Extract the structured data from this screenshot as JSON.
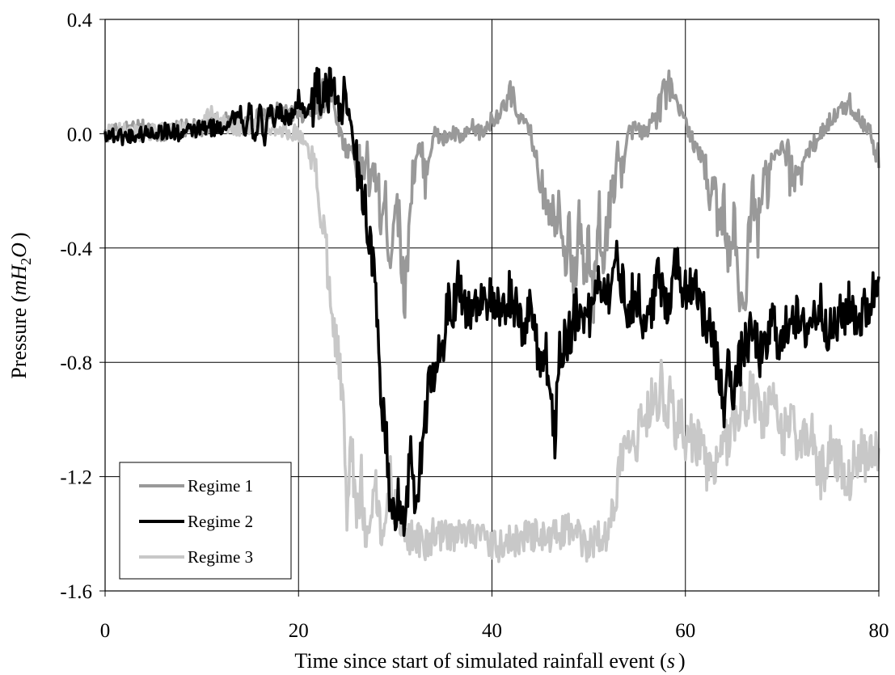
{
  "chart_data": {
    "type": "line",
    "title": "",
    "xlabel": "Time since start of simulated rainfall event (s)",
    "xlabel_parts": {
      "text": "Time since start of simulated rainfall event (",
      "unit": "s",
      "close": ")"
    },
    "ylabel": "Pressure (mH2O)",
    "ylabel_parts": {
      "text": "Pressure (",
      "unit_m": "mH",
      "unit_sub": "2",
      "unit_o": "O",
      "close": ")"
    },
    "xlim": [
      0,
      80
    ],
    "ylim": [
      -1.6,
      0.4
    ],
    "xticks": [
      0,
      20,
      40,
      60,
      80
    ],
    "xtick_labels": [
      "0",
      "20",
      "40",
      "60",
      "80"
    ],
    "yticks": [
      0.4,
      0.0,
      -0.4,
      -0.8,
      -1.2,
      -1.6
    ],
    "ytick_labels": [
      "0.4",
      "0.0",
      "-0.4",
      "-0.8",
      "-1.2",
      "-1.6"
    ],
    "grid": true,
    "legend_position": "bottom-left",
    "series": [
      {
        "name": "Regime 1",
        "color": "#999999",
        "x": [
          0,
          2,
          4,
          6,
          8,
          10,
          12,
          14,
          16,
          18,
          20,
          21,
          22,
          22.5,
          23,
          23.5,
          24,
          24.5,
          25,
          25.5,
          26,
          26.5,
          27,
          27.5,
          28,
          28.5,
          29,
          29.5,
          30,
          30.5,
          31,
          31.5,
          32,
          32.5,
          33,
          33.5,
          34,
          35,
          36,
          37,
          38,
          39,
          40,
          41,
          42,
          43,
          44,
          45,
          46,
          46.5,
          47,
          47.5,
          48,
          48.5,
          49,
          49.5,
          50,
          50.5,
          51,
          51.5,
          52,
          52.5,
          53,
          53.5,
          54,
          55,
          56,
          57,
          58,
          59,
          60,
          61,
          62,
          62.5,
          63,
          63.5,
          64,
          64.5,
          65,
          65.5,
          66,
          66.5,
          67,
          67.5,
          68,
          68.5,
          69,
          70,
          71,
          72,
          73,
          74,
          75,
          76,
          77,
          78,
          79,
          79.5,
          80
        ],
        "y": [
          0.0,
          0.01,
          0.02,
          0.0,
          0.02,
          0.02,
          0.05,
          0.03,
          0.06,
          0.08,
          0.06,
          0.07,
          0.1,
          0.15,
          0.16,
          0.12,
          0.05,
          -0.02,
          -0.06,
          -0.05,
          -0.1,
          -0.15,
          -0.08,
          -0.2,
          -0.12,
          -0.3,
          -0.25,
          -0.45,
          -0.2,
          -0.35,
          -0.6,
          -0.25,
          -0.1,
          -0.05,
          -0.15,
          -0.08,
          0.0,
          -0.02,
          0.0,
          -0.02,
          0.02,
          0.0,
          0.05,
          0.08,
          0.12,
          0.05,
          0.0,
          -0.15,
          -0.25,
          -0.3,
          -0.2,
          -0.45,
          -0.35,
          -0.55,
          -0.3,
          -0.5,
          -0.4,
          -0.6,
          -0.25,
          -0.45,
          -0.3,
          -0.2,
          -0.05,
          -0.15,
          0.0,
          0.02,
          0.0,
          0.1,
          0.15,
          0.1,
          0.05,
          -0.05,
          -0.1,
          -0.2,
          -0.15,
          -0.35,
          -0.25,
          -0.45,
          -0.3,
          -0.55,
          -0.65,
          -0.4,
          -0.2,
          -0.35,
          -0.15,
          -0.2,
          -0.1,
          -0.05,
          -0.15,
          -0.1,
          -0.05,
          0.0,
          0.05,
          0.08,
          0.1,
          0.05,
          0.02,
          -0.05,
          -0.12
        ]
      },
      {
        "name": "Regime 2",
        "color": "#000000",
        "x": [
          0,
          2,
          4,
          6,
          8,
          10,
          12,
          13,
          14,
          14.5,
          15,
          15.5,
          16,
          16.5,
          17,
          17.5,
          18,
          19,
          20,
          21,
          22,
          23,
          23.5,
          24,
          24.5,
          25,
          25.5,
          26,
          26.5,
          27,
          27.5,
          28,
          28.5,
          29,
          29.5,
          30,
          30.5,
          31,
          31.5,
          32,
          32.5,
          33,
          33.5,
          34,
          34.5,
          35,
          35.5,
          36,
          36.5,
          37,
          38,
          39,
          40,
          41,
          42,
          43,
          44,
          45,
          45.5,
          46,
          46.5,
          47,
          48,
          49,
          50,
          51,
          52,
          53,
          54,
          55,
          56,
          57,
          58,
          59,
          60,
          61,
          62,
          63,
          63.5,
          64,
          64.5,
          65,
          66,
          67,
          68,
          69,
          70,
          71,
          72,
          73,
          74,
          75,
          76,
          77,
          78,
          79,
          80
        ],
        "y": [
          0.0,
          -0.01,
          0.0,
          0.01,
          0.0,
          0.02,
          0.02,
          0.05,
          0.08,
          -0.02,
          0.1,
          -0.05,
          0.12,
          -0.05,
          0.1,
          0.05,
          0.08,
          0.05,
          0.1,
          0.08,
          0.15,
          0.12,
          0.18,
          0.15,
          0.1,
          0.12,
          0.0,
          -0.1,
          -0.15,
          -0.3,
          -0.4,
          -0.6,
          -0.9,
          -1.05,
          -1.3,
          -1.35,
          -1.25,
          -1.4,
          -1.1,
          -1.3,
          -1.2,
          -1.0,
          -0.9,
          -0.85,
          -0.75,
          -0.8,
          -0.55,
          -0.65,
          -0.45,
          -0.6,
          -0.62,
          -0.55,
          -0.6,
          -0.65,
          -0.55,
          -0.7,
          -0.6,
          -0.8,
          -0.75,
          -0.9,
          -1.05,
          -0.75,
          -0.7,
          -0.6,
          -0.65,
          -0.5,
          -0.55,
          -0.45,
          -0.6,
          -0.55,
          -0.7,
          -0.5,
          -0.6,
          -0.45,
          -0.55,
          -0.5,
          -0.65,
          -0.75,
          -0.85,
          -0.95,
          -0.8,
          -0.9,
          -0.75,
          -0.7,
          -0.8,
          -0.65,
          -0.75,
          -0.6,
          -0.7,
          -0.65,
          -0.6,
          -0.7,
          -0.65,
          -0.6,
          -0.65,
          -0.6,
          -0.5
        ]
      },
      {
        "name": "Regime 3",
        "color": "#c8c8c8",
        "x": [
          0,
          2,
          4,
          6,
          8,
          10,
          11,
          12,
          14,
          16,
          18,
          20,
          21,
          22,
          22.5,
          23,
          23.5,
          24,
          24.5,
          25,
          25.5,
          26,
          26.5,
          27,
          27.5,
          28,
          28.5,
          29,
          29.5,
          30,
          30.5,
          31,
          31.5,
          32,
          33,
          34,
          36,
          38,
          40,
          42,
          44,
          46,
          48,
          50,
          51,
          52,
          52.5,
          53,
          53.5,
          54,
          54.5,
          55,
          55.5,
          56,
          56.5,
          57,
          57.5,
          58,
          58.5,
          59,
          59.5,
          60,
          61,
          62,
          63,
          64,
          65,
          66,
          67,
          68,
          69,
          70,
          71,
          72,
          73,
          74,
          75,
          76,
          77,
          78,
          79,
          80
        ],
        "y": [
          0.0,
          0.01,
          0.0,
          0.02,
          0.01,
          0.02,
          0.08,
          0.04,
          0.02,
          0.03,
          0.02,
          0.0,
          -0.05,
          -0.2,
          -0.3,
          -0.45,
          -0.6,
          -0.75,
          -0.9,
          -1.3,
          -1.1,
          -1.35,
          -1.2,
          -1.45,
          -1.3,
          -1.25,
          -1.4,
          -1.35,
          -1.2,
          -1.3,
          -1.35,
          -1.38,
          -1.42,
          -1.4,
          -1.45,
          -1.4,
          -1.42,
          -1.38,
          -1.45,
          -1.43,
          -1.4,
          -1.42,
          -1.38,
          -1.45,
          -1.4,
          -1.42,
          -1.3,
          -1.2,
          -1.1,
          -1.05,
          -1.0,
          -1.1,
          -0.95,
          -1.0,
          -0.9,
          -0.95,
          -0.85,
          -1.0,
          -0.9,
          -1.05,
          -1.0,
          -1.1,
          -1.05,
          -1.15,
          -1.2,
          -1.1,
          -1.0,
          -0.95,
          -0.9,
          -1.0,
          -0.95,
          -1.05,
          -1.0,
          -1.1,
          -1.05,
          -1.2,
          -1.1,
          -1.15,
          -1.2,
          -1.1,
          -1.15,
          -1.1
        ]
      }
    ]
  }
}
